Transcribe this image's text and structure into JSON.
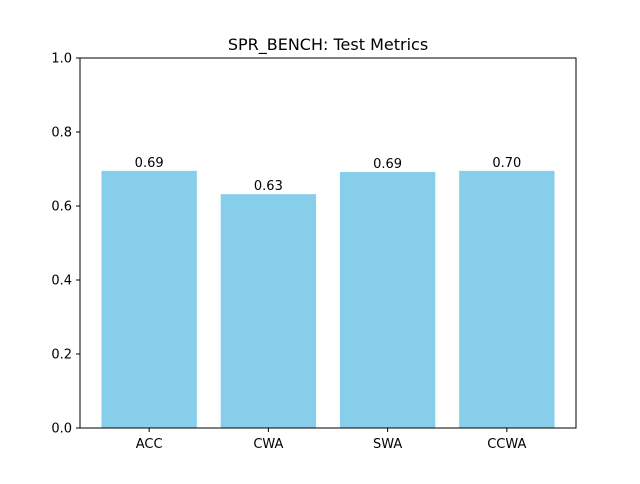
{
  "chart_data": {
    "type": "bar",
    "title": "SPR_BENCH: Test Metrics",
    "categories": [
      "ACC",
      "CWA",
      "SWA",
      "CCWA"
    ],
    "values": [
      0.695,
      0.632,
      0.692,
      0.695
    ],
    "data_labels": [
      "0.69",
      "0.63",
      "0.69",
      "0.70"
    ],
    "xlabel": "",
    "ylabel": "",
    "ylim": [
      0,
      1.0
    ],
    "yticks": [
      "0.0",
      "0.2",
      "0.4",
      "0.6",
      "0.8",
      "1.0"
    ],
    "grid": false,
    "legend": "none",
    "colors": {
      "bar": "#87ceeb",
      "axes": "#000000",
      "background": "#ffffff"
    }
  }
}
